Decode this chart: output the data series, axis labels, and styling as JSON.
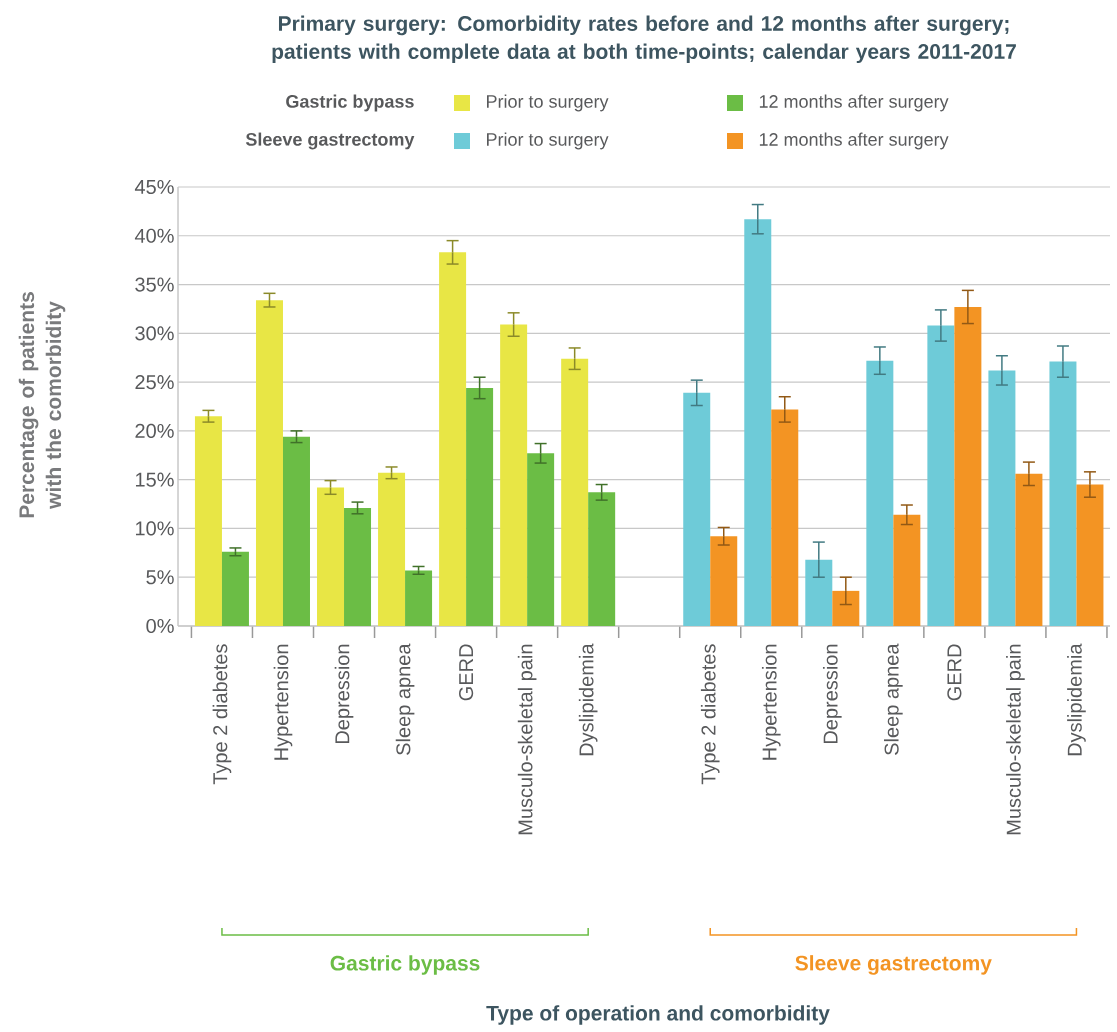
{
  "chart_data": {
    "type": "bar",
    "title": "Primary surgery: Comorbidity rates before and 12 months after surgery; patients with complete data at both time-points; calendar years 2011-2017",
    "ylabel": "Percentage of patients with the comorbidity",
    "categories": [
      "Type 2 diabetes",
      "Hypertension",
      "Depression",
      "Sleep apnea",
      "GERD",
      "Musculo-skeletal pain",
      "Dyslipidemia",
      null,
      "Type 2 diabetes",
      "Hypertension",
      "Depression",
      "Sleep apnea",
      "GERD",
      "Musculo-skeletal pain",
      "Dyslipidemia"
    ],
    "series": [
      {
        "name": "Prior to surgery",
        "color": "#e8e645",
        "values": [
          21.5,
          33.4,
          14.2,
          15.7,
          38.3,
          30.9,
          27.4,
          null,
          null,
          null,
          null,
          null,
          null,
          null,
          null
        ],
        "errors": [
          0.6,
          0.7,
          0.7,
          0.6,
          1.2,
          1.2,
          1.1,
          null,
          null,
          null,
          null,
          null,
          null,
          null,
          null
        ]
      },
      {
        "name": "12 months after surgery",
        "color": "#6bbd45",
        "values": [
          7.6,
          19.4,
          12.1,
          5.7,
          24.4,
          17.7,
          13.7,
          null,
          null,
          null,
          null,
          null,
          null,
          null,
          null
        ],
        "errors": [
          0.4,
          0.6,
          0.6,
          0.4,
          1.1,
          1.0,
          0.8,
          null,
          null,
          null,
          null,
          null,
          null,
          null,
          null
        ]
      },
      {
        "name": "Prior to surgery",
        "color": "#6ecbd8",
        "values": [
          null,
          null,
          null,
          null,
          null,
          null,
          null,
          null,
          23.9,
          41.7,
          6.8,
          27.2,
          30.8,
          26.2,
          27.1
        ],
        "errors": [
          null,
          null,
          null,
          null,
          null,
          null,
          null,
          null,
          1.3,
          1.5,
          1.8,
          1.4,
          1.6,
          1.5,
          1.6
        ]
      },
      {
        "name": "12 months after surgery",
        "color": "#f39423",
        "values": [
          null,
          null,
          null,
          null,
          null,
          null,
          null,
          null,
          9.2,
          22.2,
          3.6,
          11.4,
          32.7,
          15.6,
          14.5
        ],
        "errors": [
          null,
          null,
          null,
          null,
          null,
          null,
          null,
          null,
          0.9,
          1.3,
          1.4,
          1.0,
          1.7,
          1.2,
          1.3
        ]
      }
    ],
    "ylim": [
      0,
      45
    ],
    "yticks": [
      {
        "value": 0,
        "label": "0%"
      },
      {
        "value": 5,
        "label": "5%"
      },
      {
        "value": 10,
        "label": "10%"
      },
      {
        "value": 15,
        "label": "15%"
      },
      {
        "value": 20,
        "label": "20%"
      },
      {
        "value": 25,
        "label": "25%"
      },
      {
        "value": 30,
        "label": "30%"
      },
      {
        "value": 35,
        "label": "35%"
      },
      {
        "value": 40,
        "label": "40%"
      },
      {
        "value": 45,
        "label": "45%"
      }
    ],
    "grid": "y",
    "legend": "top",
    "annotations": [
      "Gastric bypass",
      "Sleeve gastrectomy",
      "Type of operation and comorbidity"
    ]
  }
}
